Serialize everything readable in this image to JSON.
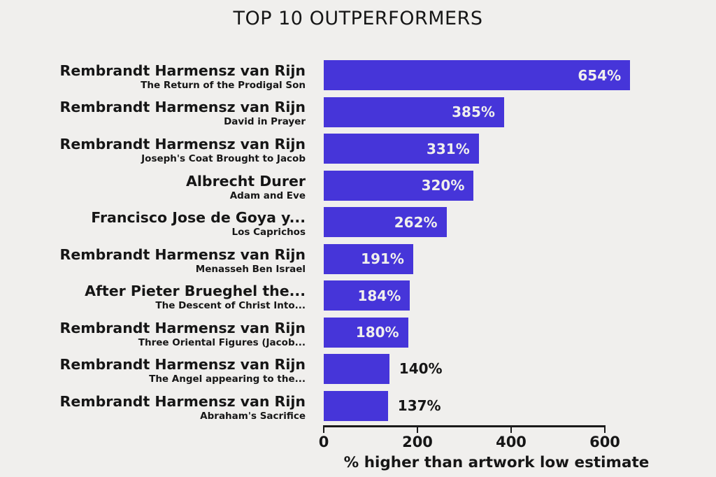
{
  "page": {
    "background": "#f0efed",
    "text_color": "#161616"
  },
  "title": "TOP 10 OUTPERFORMERS",
  "chart_data": {
    "type": "bar",
    "orientation": "horizontal",
    "title": "TOP 10 OUTPERFORMERS",
    "xlabel": "% higher than artwork low estimate",
    "xlim": [
      0,
      660
    ],
    "x_ticks": [
      0,
      200,
      400,
      600
    ],
    "grid": false,
    "legend": false,
    "bar_color": "#4635d9",
    "bar_label_color_inside": "#f0efed",
    "bar_label_color_outside": "#161616",
    "rows": [
      {
        "artist": "Rembrandt Harmensz van Rijn",
        "artwork": "The Return of the Prodigal Son",
        "value": 654,
        "label": "654%",
        "label_inside": true
      },
      {
        "artist": "Rembrandt Harmensz van Rijn",
        "artwork": "David in Prayer",
        "value": 385,
        "label": "385%",
        "label_inside": true
      },
      {
        "artist": "Rembrandt Harmensz van Rijn",
        "artwork": "Joseph's Coat Brought to Jacob",
        "value": 331,
        "label": "331%",
        "label_inside": true
      },
      {
        "artist": "Albrecht Durer",
        "artwork": "Adam and Eve",
        "value": 320,
        "label": "320%",
        "label_inside": true
      },
      {
        "artist": "Francisco Jose de Goya y...",
        "artwork": "Los Caprichos",
        "value": 262,
        "label": "262%",
        "label_inside": true
      },
      {
        "artist": "Rembrandt Harmensz van Rijn",
        "artwork": "Menasseh Ben Israel",
        "value": 191,
        "label": "191%",
        "label_inside": true
      },
      {
        "artist": "After Pieter Brueghel the...",
        "artwork": "The Descent of Christ Into...",
        "value": 184,
        "label": "184%",
        "label_inside": true
      },
      {
        "artist": "Rembrandt Harmensz van Rijn",
        "artwork": "Three Oriental Figures (Jacob...",
        "value": 180,
        "label": "180%",
        "label_inside": true
      },
      {
        "artist": "Rembrandt Harmensz van Rijn",
        "artwork": "The Angel appearing to the...",
        "value": 140,
        "label": "140%",
        "label_inside": false
      },
      {
        "artist": "Rembrandt Harmensz van Rijn",
        "artwork": "Abraham's Sacrifice",
        "value": 137,
        "label": "137%",
        "label_inside": false
      }
    ]
  }
}
